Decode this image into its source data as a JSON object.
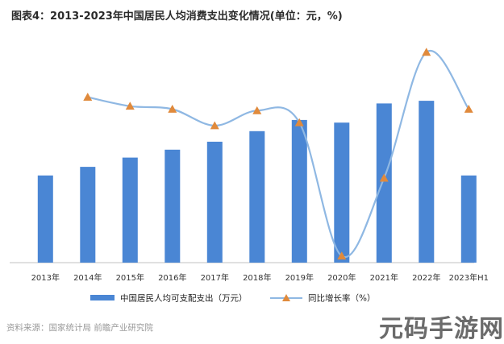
{
  "title": "图表4：2013-2023年中国居民人均消费支出变化情况(单位：元，%)",
  "source": "资料来源：国家统计局 前瞻产业研究院",
  "corner_mark": "元码手游网",
  "colors": {
    "bar": "#4a86d4",
    "line": "#8fb8e3",
    "marker": "#e08a3c",
    "axis": "#c0c0c0"
  },
  "chart_data": {
    "type": "bar",
    "categories": [
      "2013年",
      "2014年",
      "2015年",
      "2016年",
      "2017年",
      "2018年",
      "2019年",
      "2020年",
      "2021年",
      "2022年",
      "2023年H1"
    ],
    "series": [
      {
        "name": "中国居民人均可支配支出（万元）",
        "type": "bar",
        "values": [
          1.32,
          1.45,
          1.59,
          1.71,
          1.83,
          1.99,
          2.16,
          2.12,
          2.41,
          2.45,
          1.32
        ]
      },
      {
        "name": "同比增长率（%）",
        "type": "line",
        "values": [
          null,
          9.0,
          8.4,
          8.2,
          7.1,
          8.1,
          7.3,
          -1.6,
          3.6,
          12.0,
          8.2
        ]
      }
    ],
    "legend_position": "bottom"
  }
}
